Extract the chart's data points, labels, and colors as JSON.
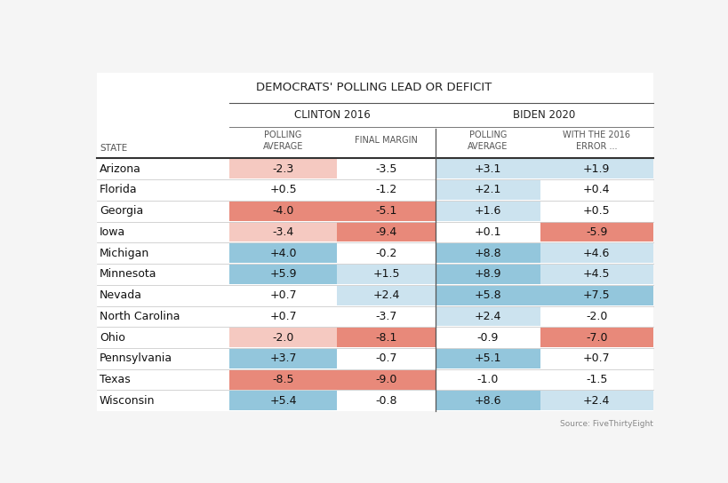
{
  "title": "DEMOCRATS' POLLING LEAD OR DEFICIT",
  "header1": "CLINTON 2016",
  "header2": "BIDEN 2020",
  "col_headers": [
    "POLLING\nAVERAGE",
    "FINAL MARGIN",
    "POLLING\nAVERAGE",
    "WITH THE 2016\nERROR ..."
  ],
  "state_col_header": "STATE",
  "states": [
    "Arizona",
    "Florida",
    "Georgia",
    "Iowa",
    "Michigan",
    "Minnesota",
    "Nevada",
    "North Carolina",
    "Ohio",
    "Pennsylvania",
    "Texas",
    "Wisconsin"
  ],
  "clinton_polling": [
    -2.3,
    0.5,
    -4.0,
    -3.4,
    4.0,
    5.9,
    0.7,
    0.7,
    -2.0,
    3.7,
    -8.5,
    5.4
  ],
  "clinton_final": [
    -3.5,
    -1.2,
    -5.1,
    -9.4,
    -0.2,
    1.5,
    2.4,
    -3.7,
    -8.1,
    -0.7,
    -9.0,
    -0.8
  ],
  "biden_polling": [
    3.1,
    2.1,
    1.6,
    0.1,
    8.8,
    8.9,
    5.8,
    2.4,
    -0.9,
    5.1,
    -1.0,
    8.6
  ],
  "biden_error": [
    1.9,
    0.4,
    0.5,
    -5.9,
    4.6,
    4.5,
    7.5,
    -2.0,
    -7.0,
    0.7,
    -1.5,
    2.4
  ],
  "cell_colors": {
    "clinton_polling": [
      "red_vl",
      null,
      "red_l",
      "red_vl",
      "blue_l",
      "blue_l",
      null,
      null,
      "red_vl",
      "blue_l",
      "red_l",
      "blue_l"
    ],
    "clinton_final": [
      null,
      null,
      "red_l",
      "red_l",
      null,
      "blue_vl",
      "blue_vl",
      null,
      "red_l",
      null,
      "red_l",
      null
    ],
    "biden_polling": [
      "blue_vl",
      "blue_vl",
      "blue_vl",
      null,
      "blue_l",
      "blue_l",
      "blue_l",
      "blue_vl",
      null,
      "blue_l",
      null,
      "blue_l"
    ],
    "biden_error": [
      "blue_vl",
      null,
      null,
      "red_l",
      "blue_vl",
      "blue_vl",
      "blue_l",
      null,
      "red_l",
      null,
      null,
      "blue_vl"
    ]
  },
  "source": "Source: FiveThirtyEight",
  "bg_color": "#f5f5f5",
  "blue_l": "#93c6dc",
  "blue_vl": "#cce3ef",
  "red_l": "#e8897a",
  "red_vl": "#f5c9c1"
}
